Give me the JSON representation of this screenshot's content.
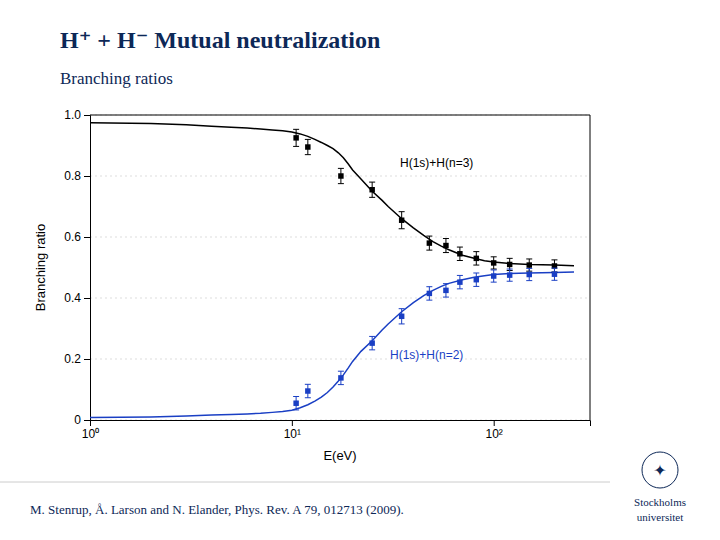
{
  "chart_data": {
    "type": "line",
    "title": "H⁺ + H⁻ Mutual neutralization",
    "subtitle": "Branching ratios",
    "xlabel": "E(eV)",
    "ylabel": "Branching ratio",
    "log": "x",
    "xlim": [
      1.0,
      300
    ],
    "xticks": [
      {
        "value": 1,
        "label": "10⁰"
      },
      {
        "value": 10,
        "label": "10¹"
      },
      {
        "value": 100,
        "label": "10²"
      }
    ],
    "ylim": [
      0,
      1.0
    ],
    "yticks": [
      0,
      0.2,
      0.4,
      0.6,
      0.8,
      {
        "value": 1.0,
        "label": "1.0"
      }
    ],
    "grid": true,
    "series": [
      {
        "name": "H(1s)+H(n=3)",
        "type": "line",
        "color": "#000000",
        "x": [
          1.0,
          2.0,
          3.0,
          4.0,
          5.0,
          6.0,
          7.0,
          8.0,
          9.0,
          10.0,
          11.0,
          12.0,
          13.0,
          14.0,
          15.0,
          16.0,
          17.0,
          18.0,
          19.0,
          20.0,
          22.0,
          25.0,
          28.0,
          30.0,
          35.0,
          40.0,
          45.0,
          50.0,
          55.0,
          60.0,
          70.0,
          80.0,
          90.0,
          100.0,
          120.0,
          150.0,
          200.0,
          250.0
        ],
        "values": [
          0.975,
          0.972,
          0.968,
          0.963,
          0.96,
          0.957,
          0.954,
          0.951,
          0.948,
          0.944,
          0.938,
          0.93,
          0.92,
          0.91,
          0.9,
          0.89,
          0.876,
          0.86,
          0.84,
          0.82,
          0.79,
          0.75,
          0.72,
          0.7,
          0.66,
          0.63,
          0.605,
          0.585,
          0.57,
          0.558,
          0.54,
          0.53,
          0.522,
          0.518,
          0.513,
          0.51,
          0.508,
          0.506
        ]
      },
      {
        "name": "H(1s)+H(n=2)",
        "type": "line",
        "color": "#1a3fc4",
        "x": [
          1.0,
          2.0,
          3.0,
          4.0,
          5.0,
          6.0,
          7.0,
          8.0,
          9.0,
          10.0,
          11.0,
          12.0,
          13.0,
          14.0,
          15.0,
          16.0,
          17.0,
          18.0,
          19.0,
          20.0,
          22.0,
          25.0,
          28.0,
          30.0,
          35.0,
          40.0,
          45.0,
          50.0,
          55.0,
          60.0,
          70.0,
          80.0,
          90.0,
          100.0,
          120.0,
          150.0,
          200.0,
          250.0
        ],
        "values": [
          0.008,
          0.01,
          0.013,
          0.016,
          0.018,
          0.02,
          0.022,
          0.025,
          0.028,
          0.032,
          0.04,
          0.05,
          0.062,
          0.075,
          0.09,
          0.108,
          0.128,
          0.148,
          0.17,
          0.192,
          0.225,
          0.26,
          0.295,
          0.315,
          0.355,
          0.385,
          0.408,
          0.425,
          0.438,
          0.448,
          0.46,
          0.468,
          0.473,
          0.477,
          0.48,
          0.482,
          0.484,
          0.485
        ]
      },
      {
        "type": "scatter",
        "marker": "square",
        "color": "#000000",
        "x": [
          10.5,
          12.0,
          17.5,
          25.0,
          35.0,
          48.0,
          58.0,
          68.0,
          82.0,
          100.0,
          120.0,
          150.0,
          200.0
        ],
        "values": [
          0.925,
          0.895,
          0.8,
          0.755,
          0.655,
          0.58,
          0.572,
          0.545,
          0.53,
          0.515,
          0.51,
          0.508,
          0.505
        ],
        "errors": [
          0.028,
          0.025,
          0.025,
          0.025,
          0.028,
          0.023,
          0.023,
          0.022,
          0.022,
          0.02,
          0.02,
          0.02,
          0.02
        ]
      },
      {
        "type": "scatter",
        "marker": "square",
        "color": "#1a3fc4",
        "x": [
          10.5,
          12.0,
          17.5,
          25.0,
          35.0,
          48.0,
          58.0,
          68.0,
          82.0,
          100.0,
          120.0,
          150.0,
          200.0
        ],
        "values": [
          0.055,
          0.095,
          0.138,
          0.252,
          0.34,
          0.415,
          0.425,
          0.452,
          0.46,
          0.472,
          0.475,
          0.477,
          0.478
        ],
        "errors": [
          0.022,
          0.022,
          0.022,
          0.022,
          0.025,
          0.022,
          0.022,
          0.022,
          0.022,
          0.02,
          0.02,
          0.02,
          0.02
        ]
      }
    ],
    "annotations": [
      "M. Stenrup, Å. Larson and N. Elander, Phys. Rev. A 79, 012713 (2009).",
      "Stockholms",
      "universitet",
      "✦"
    ]
  }
}
